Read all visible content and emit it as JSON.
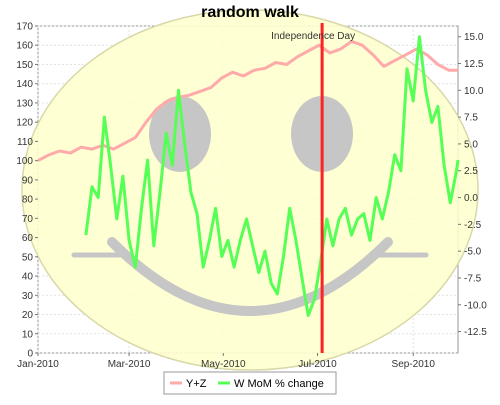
{
  "chart_data": {
    "type": "line",
    "title": "random walk",
    "annotation": "Independence Day",
    "marker_date": "2010-07-04",
    "x_axis": {
      "range": [
        "2010-01-01",
        "2010-09-30"
      ],
      "ticks": [
        {
          "date": "2010-01-01",
          "label": "Jan-2010"
        },
        {
          "date": "2010-03-01",
          "label": "Mar-2010"
        },
        {
          "date": "2010-05-01",
          "label": "May-2010"
        },
        {
          "date": "2010-07-01",
          "label": "Jul-2010"
        },
        {
          "date": "2010-09-01",
          "label": "Sep-2010"
        }
      ]
    },
    "y_left": {
      "range": [
        0,
        170
      ],
      "ticks": [
        0,
        10,
        20,
        30,
        40,
        50,
        60,
        70,
        80,
        90,
        100,
        110,
        120,
        130,
        140,
        150,
        160,
        170
      ]
    },
    "y_right": {
      "range": [
        -14.5,
        16
      ],
      "ticks": [
        "-12.5",
        "-10.0",
        "-7.5",
        "-5.0",
        "-2.5",
        "0.0",
        "2.5",
        "5.0",
        "7.5",
        "10.0",
        "12.5",
        "15.0"
      ]
    },
    "legend": {
      "placement": "bottom-center",
      "entries": [
        "Y+Z",
        "W MoM % change"
      ]
    },
    "colors": {
      "yz": "#ffaaaa",
      "w": "#55ff55",
      "marker": "#ff2222",
      "face_fill": "#ffffcc",
      "face_features": "#c6c6c6"
    },
    "series": [
      {
        "name": "Y+Z",
        "axis": "left",
        "points": [
          [
            "2010-01-01",
            100
          ],
          [
            "2010-01-08",
            103
          ],
          [
            "2010-01-15",
            105
          ],
          [
            "2010-01-22",
            104
          ],
          [
            "2010-01-29",
            107
          ],
          [
            "2010-02-05",
            106
          ],
          [
            "2010-02-12",
            108
          ],
          [
            "2010-02-19",
            106
          ],
          [
            "2010-02-26",
            109
          ],
          [
            "2010-03-05",
            112
          ],
          [
            "2010-03-12",
            120
          ],
          [
            "2010-03-19",
            127
          ],
          [
            "2010-03-26",
            131
          ],
          [
            "2010-04-02",
            133
          ],
          [
            "2010-04-09",
            134
          ],
          [
            "2010-04-16",
            136
          ],
          [
            "2010-04-23",
            138
          ],
          [
            "2010-04-30",
            143
          ],
          [
            "2010-05-07",
            146
          ],
          [
            "2010-05-14",
            144
          ],
          [
            "2010-05-21",
            147
          ],
          [
            "2010-05-28",
            148
          ],
          [
            "2010-06-04",
            151
          ],
          [
            "2010-06-11",
            150
          ],
          [
            "2010-06-18",
            154
          ],
          [
            "2010-06-25",
            157
          ],
          [
            "2010-07-02",
            160
          ],
          [
            "2010-07-09",
            156
          ],
          [
            "2010-07-16",
            158
          ],
          [
            "2010-07-23",
            162
          ],
          [
            "2010-07-30",
            160
          ],
          [
            "2010-08-06",
            155
          ],
          [
            "2010-08-13",
            149
          ],
          [
            "2010-08-20",
            152
          ],
          [
            "2010-08-27",
            155
          ],
          [
            "2010-09-03",
            158
          ],
          [
            "2010-09-10",
            155
          ],
          [
            "2010-09-17",
            150
          ],
          [
            "2010-09-24",
            147
          ],
          [
            "2010-09-30",
            147
          ]
        ]
      },
      {
        "name": "W MoM % change",
        "axis": "right",
        "points": [
          [
            "2010-02-01",
            -3.5
          ],
          [
            "2010-02-05",
            1.0
          ],
          [
            "2010-02-09",
            0.0
          ],
          [
            "2010-02-13",
            7.5
          ],
          [
            "2010-02-17",
            3.0
          ],
          [
            "2010-02-21",
            -2.0
          ],
          [
            "2010-02-25",
            2.0
          ],
          [
            "2010-03-01",
            -4.0
          ],
          [
            "2010-03-05",
            -6.5
          ],
          [
            "2010-03-09",
            -1.0
          ],
          [
            "2010-03-13",
            3.5
          ],
          [
            "2010-03-17",
            -4.5
          ],
          [
            "2010-03-21",
            0.5
          ],
          [
            "2010-03-25",
            6.0
          ],
          [
            "2010-03-29",
            3.0
          ],
          [
            "2010-04-02",
            10.0
          ],
          [
            "2010-04-06",
            5.0
          ],
          [
            "2010-04-10",
            0.5
          ],
          [
            "2010-04-14",
            -1.5
          ],
          [
            "2010-04-18",
            -6.5
          ],
          [
            "2010-04-22",
            -4.0
          ],
          [
            "2010-04-26",
            -1.0
          ],
          [
            "2010-04-30",
            -5.5
          ],
          [
            "2010-05-04",
            -4.0
          ],
          [
            "2010-05-08",
            -6.5
          ],
          [
            "2010-05-12",
            -4.0
          ],
          [
            "2010-05-16",
            -2.0
          ],
          [
            "2010-05-20",
            -4.5
          ],
          [
            "2010-05-24",
            -7.0
          ],
          [
            "2010-05-28",
            -5.0
          ],
          [
            "2010-06-01",
            -8.0
          ],
          [
            "2010-06-05",
            -9.0
          ],
          [
            "2010-06-09",
            -5.5
          ],
          [
            "2010-06-13",
            -1.0
          ],
          [
            "2010-06-17",
            -4.0
          ],
          [
            "2010-06-21",
            -7.5
          ],
          [
            "2010-06-25",
            -11.0
          ],
          [
            "2010-06-29",
            -9.5
          ],
          [
            "2010-07-03",
            -6.0
          ],
          [
            "2010-07-07",
            -2.0
          ],
          [
            "2010-07-11",
            -4.5
          ],
          [
            "2010-07-15",
            -2.0
          ],
          [
            "2010-07-19",
            -1.0
          ],
          [
            "2010-07-23",
            -3.5
          ],
          [
            "2010-07-27",
            -2.0
          ],
          [
            "2010-07-31",
            -1.5
          ],
          [
            "2010-08-04",
            -4.0
          ],
          [
            "2010-08-08",
            0.0
          ],
          [
            "2010-08-12",
            -2.0
          ],
          [
            "2010-08-16",
            0.5
          ],
          [
            "2010-08-20",
            4.0
          ],
          [
            "2010-08-24",
            2.5
          ],
          [
            "2010-08-28",
            12.0
          ],
          [
            "2010-09-01",
            9.0
          ],
          [
            "2010-09-05",
            15.0
          ],
          [
            "2010-09-09",
            10.0
          ],
          [
            "2010-09-13",
            7.0
          ],
          [
            "2010-09-17",
            8.5
          ],
          [
            "2010-09-21",
            3.0
          ],
          [
            "2010-09-25",
            -0.5
          ],
          [
            "2010-09-29",
            2.5
          ],
          [
            "2010-10-01",
            3.5
          ]
        ]
      }
    ]
  }
}
